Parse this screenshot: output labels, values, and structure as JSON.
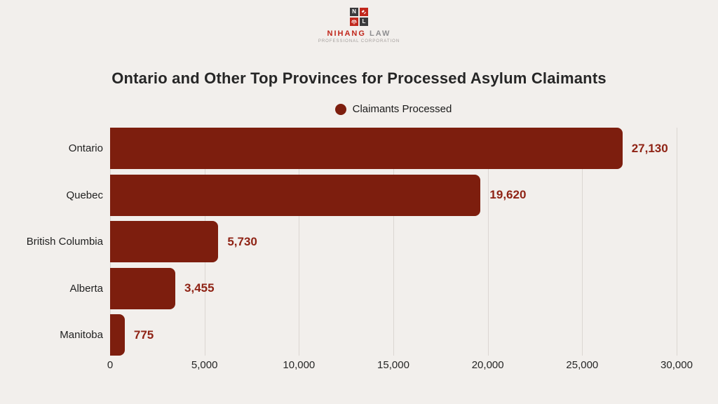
{
  "page": {
    "background": "#F2EFEC"
  },
  "logo": {
    "grid": [
      {
        "text": "N",
        "color": "#3A3A3C"
      },
      {
        "icon": "gavel-icon",
        "color": "#C1271C"
      },
      {
        "icon": "scales-icon",
        "color": "#C1271C"
      },
      {
        "text": "L",
        "color": "#3A3A3C"
      }
    ],
    "name_primary": "NIHANG",
    "name_secondary": "LAW",
    "subtitle": "PROFESSIONAL CORPORATION"
  },
  "chart_data": {
    "type": "bar",
    "orientation": "horizontal",
    "title": "Ontario and Other Top Provinces for Processed Asylum Claimants",
    "legend": [
      {
        "label": "Claimants Processed",
        "color": "#7D1E0E"
      }
    ],
    "categories": [
      "Ontario",
      "Quebec",
      "British Columbia",
      "Alberta",
      "Manitoba"
    ],
    "values": [
      27130,
      19620,
      5730,
      3455,
      775
    ],
    "value_labels": [
      "27,130",
      "19,620",
      "5,730",
      "3,455",
      "775"
    ],
    "xlim": [
      0,
      30000
    ],
    "x_ticks": [
      0,
      5000,
      10000,
      15000,
      20000,
      25000,
      30000
    ],
    "x_tick_labels": [
      "0",
      "5,000",
      "10,000",
      "15,000",
      "20,000",
      "25,000",
      "30,000"
    ],
    "grid": "vertical",
    "bar_color": "#7D1E0E",
    "value_label_color": "#8F2315"
  }
}
